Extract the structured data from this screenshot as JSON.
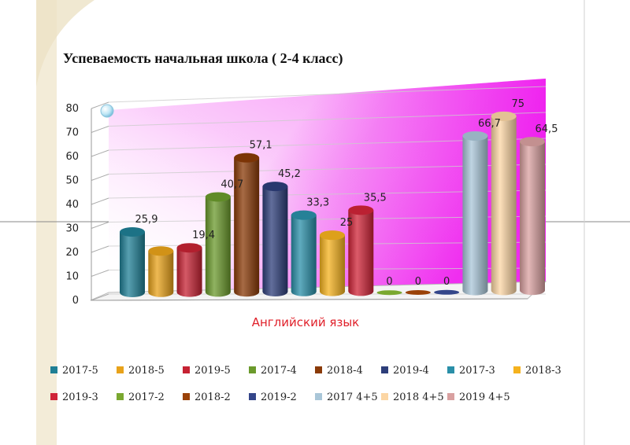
{
  "chart_data": {
    "type": "bar",
    "title": "Успеваемость начальная школа ( 2-4  класс)",
    "xlabel": "Английский язык",
    "ylabel": "",
    "ylim": [
      0,
      80
    ],
    "yticks": [
      0,
      10,
      20,
      30,
      40,
      50,
      60,
      70,
      80
    ],
    "grid": true,
    "legend": "bottom",
    "categories": [
      "Английский язык"
    ],
    "series": [
      {
        "name": "2017-5",
        "label": "25,9",
        "values": [
          25.9
        ],
        "color": "#1f7f95"
      },
      {
        "name": "2018-5",
        "label": "",
        "values": [
          18
        ],
        "color": "#e8a21a"
      },
      {
        "name": "2019-5",
        "label": "19,4",
        "values": [
          19.4
        ],
        "color": "#c62233"
      },
      {
        "name": "2017-4",
        "label": "40,7",
        "values": [
          40.7
        ],
        "color": "#6b9a2c"
      },
      {
        "name": "2018-4",
        "label": "57,1",
        "values": [
          57.1
        ],
        "color": "#8a3a07"
      },
      {
        "name": "2019-4",
        "label": "45,2",
        "values": [
          45.2
        ],
        "color": "#2d3e7a"
      },
      {
        "name": "2017-3",
        "label": "33,3",
        "values": [
          33.3
        ],
        "color": "#2a8fa8"
      },
      {
        "name": "2018-3",
        "label": "25",
        "values": [
          25
        ],
        "color": "#f5b21e"
      },
      {
        "name": "2019-3",
        "label": "35,5",
        "values": [
          35.5
        ],
        "color": "#d02438"
      },
      {
        "name": "2017-2",
        "label": "0",
        "values": [
          0
        ],
        "color": "#7aa830"
      },
      {
        "name": "2018-2",
        "label": "0",
        "values": [
          0
        ],
        "color": "#9a4208"
      },
      {
        "name": "2019-2",
        "label": "0",
        "values": [
          0
        ],
        "color": "#34468a"
      },
      {
        "name": "2017 4+5",
        "label": "66,7",
        "values": [
          66.7
        ],
        "color": "#a9c6d8"
      },
      {
        "name": "2018 4+5",
        "label": "75",
        "values": [
          75
        ],
        "color": "#fcd6a4"
      },
      {
        "name": "2019 4+5",
        "label": "64,5",
        "values": [
          64.5
        ],
        "color": "#d9a0a0"
      }
    ]
  },
  "colors": {
    "wall_magenta": "#ee11ee",
    "wall_white": "#ffffff",
    "side_strip": "#f3ecd8"
  }
}
